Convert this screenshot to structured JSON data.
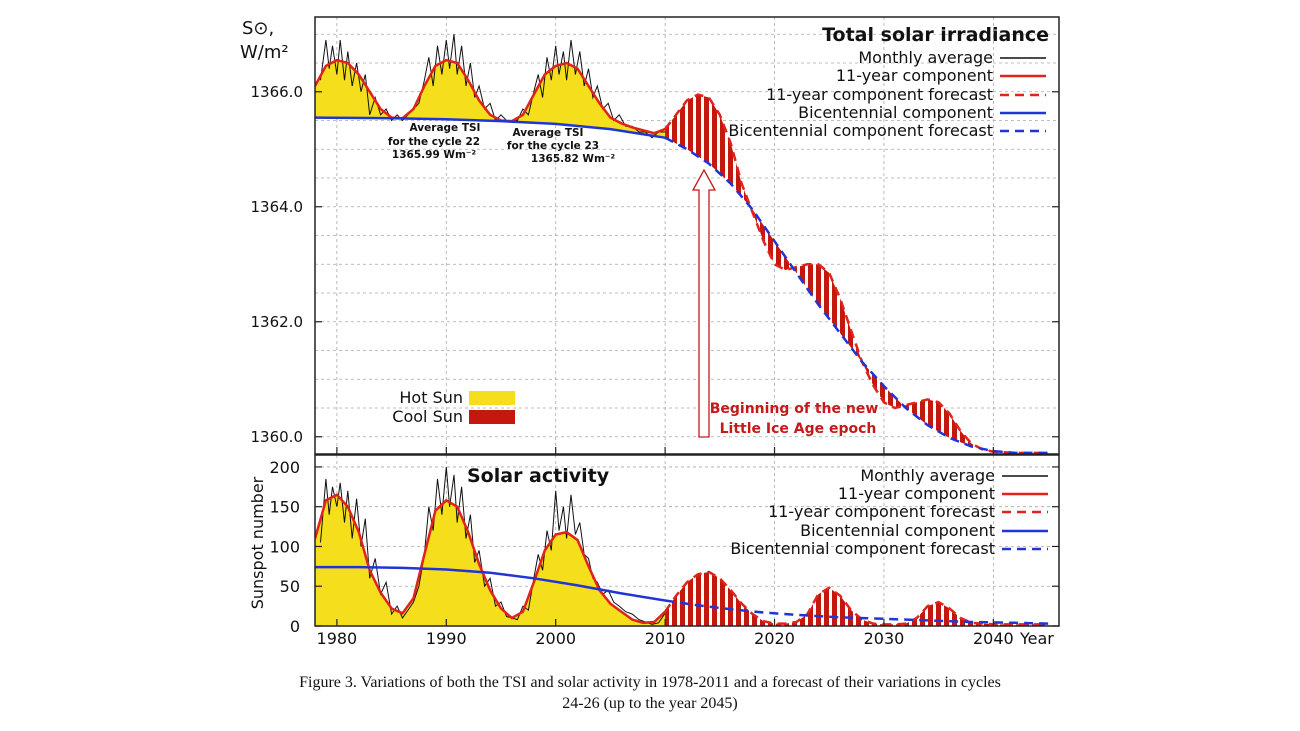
{
  "caption": {
    "line1": "Figure 3. Variations of both the TSI and solar activity in 1978-2011 and a forecast of their variations in cycles",
    "line2": "24-26 (up to the year 2045)"
  },
  "colors": {
    "hot": "#f5df1c",
    "cool": "#c4180f",
    "red": "#e0231b",
    "blue": "#1f35d6",
    "annotation": "#c41a1a",
    "grid": "#a9a9a9"
  },
  "chart_data": [
    {
      "type": "area",
      "title": "Total solar irradiance",
      "ylabel_line1": "S⊙,",
      "ylabel_line2": "W/m²",
      "xlabel": "Year",
      "xlim": [
        1978,
        2046
      ],
      "ylim": [
        1359.7,
        1367.3
      ],
      "yticks": [
        1360.0,
        1362.0,
        1364.0,
        1366.0
      ],
      "ytick_labels": [
        "1360.0",
        "1362.0",
        "1364.0",
        "1366.0"
      ],
      "legend": {
        "position": "top-right",
        "entries": [
          "Monthly average",
          "11-year component",
          "11-year component forecast",
          "Bicentennial component",
          "Bicentennial component forecast"
        ]
      },
      "fill_legend": {
        "position": "bottom-left",
        "entries": [
          "Hot Sun",
          "Cool Sun"
        ]
      },
      "annotations": [
        {
          "line1": "Average TSI",
          "line2": "for the cycle 22",
          "line3": "1365.99 Wm⁻²"
        },
        {
          "line1": "Average TSI",
          "line2": "for the cycle 23",
          "line3": "1365.82 Wm⁻²"
        },
        {
          "line1": "Beginning of the new",
          "line2": "Little Ice Age epoch"
        }
      ],
      "series": [
        {
          "name": "Bicentennial component",
          "x": [
            1978,
            1985,
            1990,
            1995,
            2000,
            2005,
            2010
          ],
          "y": [
            1365.55,
            1365.54,
            1365.52,
            1365.49,
            1365.44,
            1365.35,
            1365.2
          ]
        },
        {
          "name": "Bicentennial component forecast",
          "x": [
            2010,
            2012,
            2014,
            2016,
            2018,
            2020,
            2022,
            2024,
            2026,
            2028,
            2030,
            2032,
            2034,
            2036,
            2038,
            2040,
            2042,
            2045
          ],
          "y": [
            1365.2,
            1365.0,
            1364.75,
            1364.4,
            1363.95,
            1363.4,
            1362.85,
            1362.3,
            1361.8,
            1361.3,
            1360.88,
            1360.5,
            1360.2,
            1359.98,
            1359.83,
            1359.75,
            1359.72,
            1359.72
          ]
        },
        {
          "name": "11-year component",
          "x": [
            1978,
            1979,
            1980,
            1981,
            1982,
            1983,
            1984,
            1985,
            1986,
            1987,
            1988,
            1989,
            1990,
            1991,
            1992,
            1993,
            1994,
            1995,
            1996,
            1997,
            1998,
            1999,
            2000,
            2001,
            2002,
            2003,
            2004,
            2005,
            2006,
            2007,
            2008,
            2009,
            2010
          ],
          "y": [
            1366.1,
            1366.45,
            1366.55,
            1366.5,
            1366.3,
            1366.0,
            1365.7,
            1365.55,
            1365.54,
            1365.7,
            1366.1,
            1366.45,
            1366.55,
            1366.5,
            1366.2,
            1365.85,
            1365.6,
            1365.5,
            1365.49,
            1365.6,
            1365.95,
            1366.3,
            1366.45,
            1366.5,
            1366.4,
            1366.1,
            1365.8,
            1365.55,
            1365.45,
            1365.38,
            1365.33,
            1365.28,
            1365.35
          ]
        },
        {
          "name": "11-year component forecast",
          "x": [
            2010,
            2011,
            2012,
            2013,
            2014,
            2015,
            2016,
            2017,
            2018,
            2019,
            2020,
            2021,
            2022,
            2023,
            2024,
            2025,
            2026,
            2027,
            2028,
            2029,
            2030,
            2031,
            2032,
            2033,
            2034,
            2035,
            2036,
            2037,
            2038,
            2039,
            2040,
            2042,
            2045
          ],
          "y": [
            1365.35,
            1365.6,
            1365.85,
            1365.95,
            1365.9,
            1365.6,
            1365.1,
            1364.4,
            1363.9,
            1363.4,
            1363.0,
            1362.9,
            1362.95,
            1363.0,
            1363.0,
            1362.85,
            1362.4,
            1361.85,
            1361.3,
            1360.9,
            1360.6,
            1360.5,
            1360.55,
            1360.6,
            1360.65,
            1360.6,
            1360.4,
            1360.1,
            1359.88,
            1359.78,
            1359.74,
            1359.72,
            1359.72
          ]
        },
        {
          "name": "Monthly average",
          "x": [
            1978.5,
            1979.0,
            1979.3,
            1979.6,
            1980.0,
            1980.3,
            1980.7,
            1981.0,
            1981.4,
            1981.8,
            1982.2,
            1982.6,
            1983.0,
            1983.5,
            1984.0,
            1984.5,
            1985.0,
            1985.5,
            1986.0,
            1986.5,
            1987.0,
            1987.5,
            1988.0,
            1988.4,
            1988.8,
            1989.2,
            1989.6,
            1990.0,
            1990.3,
            1990.7,
            1991.0,
            1991.4,
            1991.8,
            1992.2,
            1992.6,
            1993.0,
            1993.5,
            1994.0,
            1994.5,
            1995.0,
            1995.5,
            1996.0,
            1996.5,
            1997.0,
            1997.5,
            1998.0,
            1998.4,
            1998.8,
            1999.2,
            1999.6,
            2000.0,
            2000.3,
            2000.7,
            2001.0,
            2001.4,
            2001.8,
            2002.2,
            2002.6,
            2003.0,
            2003.4,
            2003.8,
            2004.3,
            2004.8,
            2005.3,
            2005.8,
            2006.4,
            2007.0,
            2007.6,
            2008.2,
            2008.8,
            2009.4,
            2010.0
          ],
          "y": [
            1366.2,
            1366.9,
            1366.4,
            1366.8,
            1366.3,
            1366.9,
            1366.2,
            1366.7,
            1366.1,
            1366.5,
            1366.0,
            1366.3,
            1365.6,
            1365.9,
            1365.6,
            1365.7,
            1365.5,
            1365.6,
            1365.5,
            1365.6,
            1365.7,
            1365.8,
            1366.2,
            1366.6,
            1366.1,
            1366.8,
            1366.3,
            1366.9,
            1366.4,
            1367.0,
            1366.3,
            1366.8,
            1366.1,
            1366.5,
            1365.9,
            1366.1,
            1365.7,
            1365.8,
            1365.5,
            1365.6,
            1365.5,
            1365.5,
            1365.5,
            1365.7,
            1365.6,
            1366.0,
            1366.3,
            1365.9,
            1366.6,
            1366.2,
            1366.8,
            1366.3,
            1366.7,
            1366.2,
            1366.9,
            1366.3,
            1366.7,
            1366.1,
            1366.4,
            1365.9,
            1366.1,
            1365.7,
            1365.8,
            1365.5,
            1365.6,
            1365.4,
            1365.4,
            1365.3,
            1365.3,
            1365.2,
            1365.3,
            1365.3
          ]
        }
      ]
    },
    {
      "type": "area",
      "title": "Solar activity",
      "ylabel": "Sunspot number",
      "xlabel": "Year",
      "xlim": [
        1978,
        2046
      ],
      "ylim": [
        0,
        215
      ],
      "xticks": [
        1980,
        1990,
        2000,
        2010,
        2020,
        2030,
        2040
      ],
      "xtick_labels": [
        "1980",
        "1990",
        "2000",
        "2010",
        "2020",
        "2030",
        "2040"
      ],
      "yticks": [
        0,
        50,
        100,
        150,
        200
      ],
      "ytick_labels": [
        "0",
        "50",
        "100",
        "150",
        "200"
      ],
      "legend": {
        "position": "top-right",
        "entries": [
          "Monthly average",
          "11-year component",
          "11-year component forecast",
          "Bicentennial component",
          "Bicentennial component forecast"
        ]
      },
      "series": [
        {
          "name": "Bicentennial component",
          "x": [
            1978,
            1982,
            1986,
            1990,
            1994,
            1998,
            2002,
            2006,
            2010
          ],
          "y": [
            74,
            74,
            73,
            71,
            67,
            60,
            51,
            41,
            32
          ]
        },
        {
          "name": "Bicentennial component forecast",
          "x": [
            2010,
            2013,
            2016,
            2019,
            2022,
            2026,
            2030,
            2034,
            2038,
            2042,
            2045
          ],
          "y": [
            32,
            26,
            21,
            17,
            14,
            11,
            9,
            7,
            5,
            4,
            3
          ]
        },
        {
          "name": "11-year component",
          "x": [
            1978,
            1979,
            1980,
            1981,
            1982,
            1983,
            1984,
            1985,
            1986,
            1987,
            1988,
            1989,
            1990,
            1991,
            1992,
            1993,
            1994,
            1995,
            1996,
            1997,
            1998,
            1999,
            2000,
            2001,
            2002,
            2003,
            2004,
            2005,
            2006,
            2007,
            2008,
            2009,
            2010
          ],
          "y": [
            110,
            158,
            165,
            150,
            118,
            70,
            42,
            22,
            16,
            35,
            90,
            145,
            158,
            150,
            118,
            78,
            45,
            22,
            10,
            18,
            55,
            95,
            115,
            118,
            108,
            75,
            45,
            28,
            18,
            8,
            4,
            5,
            18
          ]
        },
        {
          "name": "11-year component forecast",
          "x": [
            2010,
            2011,
            2012,
            2013,
            2014,
            2015,
            2016,
            2017,
            2018,
            2019,
            2020,
            2021,
            2022,
            2023,
            2024,
            2025,
            2026,
            2027,
            2028,
            2029,
            2030,
            2031,
            2032,
            2033,
            2034,
            2035,
            2036,
            2037,
            2038,
            2040,
            2042,
            2045
          ],
          "y": [
            18,
            38,
            55,
            65,
            68,
            60,
            45,
            28,
            15,
            6,
            3,
            3,
            5,
            15,
            40,
            48,
            38,
            20,
            8,
            3,
            2,
            2,
            3,
            10,
            25,
            30,
            22,
            10,
            4,
            2,
            2,
            2
          ]
        },
        {
          "name": "Monthly average",
          "x": [
            1978.5,
            1979.0,
            1979.3,
            1979.6,
            1980.0,
            1980.3,
            1980.7,
            1981.0,
            1981.4,
            1981.8,
            1982.2,
            1982.6,
            1983.0,
            1983.5,
            1984.0,
            1984.5,
            1985.0,
            1985.5,
            1986.0,
            1986.5,
            1987.0,
            1987.5,
            1988.0,
            1988.4,
            1988.8,
            1989.2,
            1989.6,
            1990.0,
            1990.3,
            1990.7,
            1991.0,
            1991.4,
            1991.8,
            1992.2,
            1992.6,
            1993.0,
            1993.5,
            1994.0,
            1994.5,
            1995.0,
            1995.5,
            1996.0,
            1996.5,
            1997.0,
            1997.5,
            1998.0,
            1998.4,
            1998.8,
            1999.2,
            1999.6,
            2000.0,
            2000.3,
            2000.7,
            2001.0,
            2001.4,
            2001.8,
            2002.2,
            2002.6,
            2003.0,
            2003.4,
            2003.8,
            2004.3,
            2004.8,
            2005.3,
            2005.8,
            2006.4,
            2007.0,
            2007.6,
            2008.2,
            2008.8,
            2009.4,
            2010.0
          ],
          "y": [
            105,
            185,
            140,
            175,
            150,
            180,
            130,
            170,
            110,
            160,
            100,
            135,
            60,
            85,
            40,
            55,
            15,
            25,
            10,
            20,
            30,
            50,
            90,
            150,
            120,
            185,
            140,
            200,
            150,
            190,
            130,
            175,
            110,
            140,
            80,
            95,
            50,
            60,
            25,
            30,
            12,
            10,
            8,
            25,
            20,
            60,
            90,
            70,
            120,
            95,
            170,
            120,
            150,
            110,
            165,
            115,
            130,
            90,
            85,
            60,
            55,
            40,
            45,
            30,
            25,
            18,
            15,
            8,
            5,
            2,
            4,
            16
          ]
        }
      ]
    }
  ]
}
